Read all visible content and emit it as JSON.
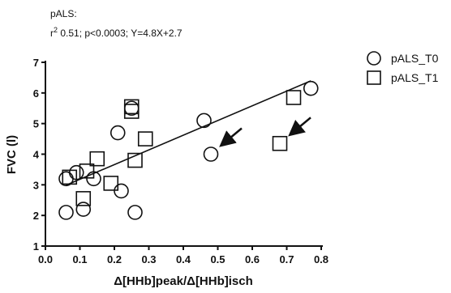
{
  "chart_data": {
    "type": "scatter",
    "title": "pALS:",
    "subtitle": {
      "r_symbol": "r",
      "r_exponent": "2",
      "rest": " 0.51; p<0.0003; Y=4.8X+2.7"
    },
    "xlabel": "Δ[HHb]peak/Δ[HHb]isch",
    "ylabel": "FVC (l)",
    "xlim": [
      0.0,
      0.8
    ],
    "ylim": [
      1,
      7
    ],
    "x_ticks": [
      "0.0",
      "0.1",
      "0.2",
      "0.3",
      "0.4",
      "0.5",
      "0.6",
      "0.7",
      "0.8"
    ],
    "y_ticks": [
      "1",
      "2",
      "3",
      "4",
      "5",
      "6",
      "7"
    ],
    "grid": false,
    "legend_position": "top-right",
    "series": [
      {
        "name": "pALS_T0",
        "marker": "circle",
        "points": [
          {
            "x": 0.06,
            "y": 2.1
          },
          {
            "x": 0.06,
            "y": 3.2
          },
          {
            "x": 0.09,
            "y": 3.4
          },
          {
            "x": 0.11,
            "y": 2.2
          },
          {
            "x": 0.14,
            "y": 3.2
          },
          {
            "x": 0.21,
            "y": 4.7
          },
          {
            "x": 0.22,
            "y": 2.8
          },
          {
            "x": 0.25,
            "y": 5.5
          },
          {
            "x": 0.26,
            "y": 2.1
          },
          {
            "x": 0.46,
            "y": 5.1
          },
          {
            "x": 0.48,
            "y": 4.0
          },
          {
            "x": 0.77,
            "y": 6.15
          }
        ]
      },
      {
        "name": "pALS_T1",
        "marker": "square",
        "points": [
          {
            "x": 0.07,
            "y": 3.25
          },
          {
            "x": 0.11,
            "y": 2.55
          },
          {
            "x": 0.12,
            "y": 3.45
          },
          {
            "x": 0.15,
            "y": 3.85
          },
          {
            "x": 0.19,
            "y": 3.05
          },
          {
            "x": 0.25,
            "y": 5.4
          },
          {
            "x": 0.25,
            "y": 5.55
          },
          {
            "x": 0.26,
            "y": 3.8
          },
          {
            "x": 0.29,
            "y": 4.5
          },
          {
            "x": 0.68,
            "y": 4.35
          },
          {
            "x": 0.72,
            "y": 5.85
          }
        ]
      }
    ],
    "regression_line": {
      "slope": 4.8,
      "intercept": 2.7,
      "x_range": [
        0.06,
        0.77
      ]
    },
    "annotations": [
      {
        "type": "arrow",
        "target": {
          "x": 0.48,
          "y": 4.0
        }
      },
      {
        "type": "arrow",
        "target": {
          "x": 0.68,
          "y": 4.35
        }
      }
    ]
  }
}
